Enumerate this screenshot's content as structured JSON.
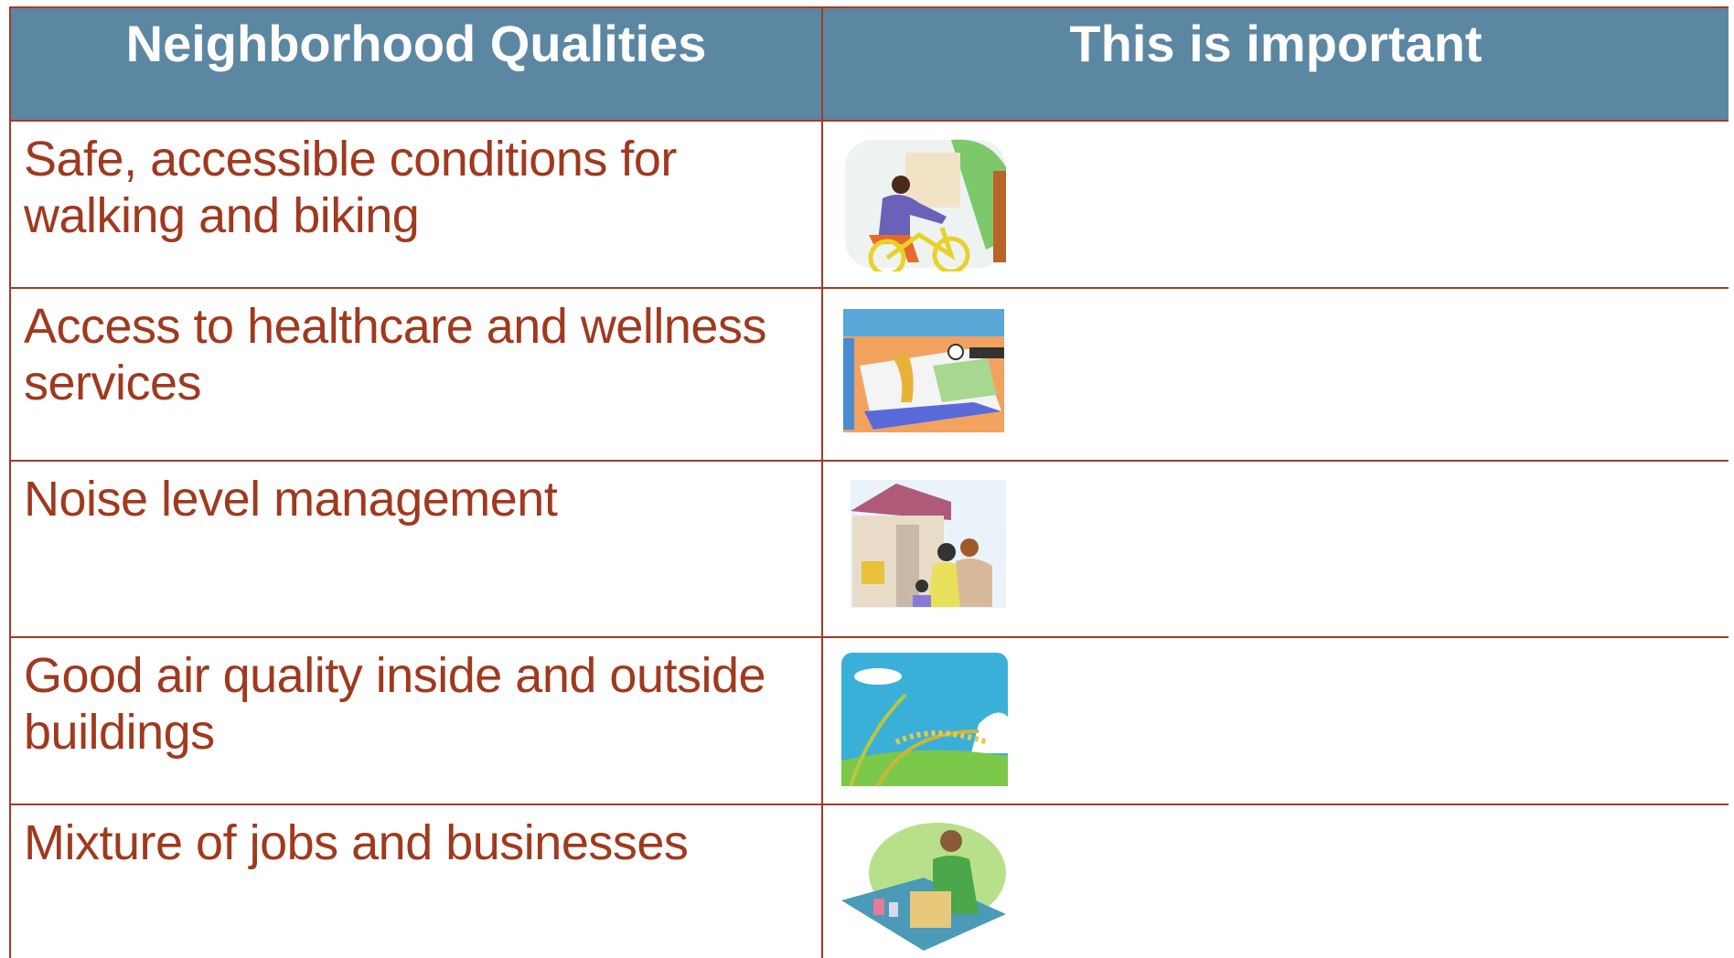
{
  "table": {
    "columns": [
      "Neighborhood Qualities",
      "This is important"
    ],
    "rows": [
      [
        "Safe, accessible conditions for walking and biking"
      ],
      [
        "Access to healthcare and wellness services"
      ],
      [
        "Noise level management"
      ],
      [
        "Good air quality inside and outside buildings"
      ],
      [
        "Mixture of jobs and businesses"
      ]
    ]
  }
}
